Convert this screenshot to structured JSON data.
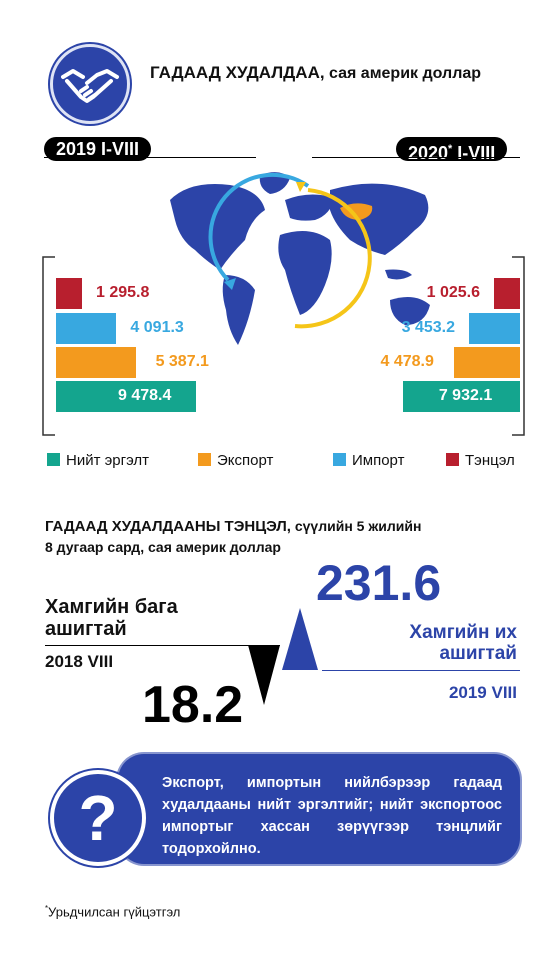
{
  "header": {
    "title_bold": "ГАДААД ХУДАЛДАА,",
    "title_rest": " сая америк доллар"
  },
  "periods": {
    "left": "2019 I-VIII",
    "right_main": "2020",
    "right_star": "*",
    "right_suffix": " I-VIII"
  },
  "colors": {
    "total": "#14a58e",
    "export": "#f39a1e",
    "import": "#38a8e0",
    "balance": "#b81f2e",
    "brand_blue": "#2c44a8",
    "yellow": "#f5c518"
  },
  "chart_data": {
    "type": "bar",
    "categories": [
      "Тэнцэл",
      "Импорт",
      "Экспорт",
      "Нийт эргэлт"
    ],
    "series": [
      {
        "name": "2019 I-VIII",
        "values": [
          1295.8,
          4091.3,
          5387.1,
          9478.4
        ],
        "labels": [
          "1 295.8",
          "4 091.3",
          "5 387.1",
          "9 478.4"
        ]
      },
      {
        "name": "2020* I-VIII",
        "values": [
          1025.6,
          3453.2,
          4478.9,
          7932.1
        ],
        "labels": [
          "1 025.6",
          "3 453.2",
          "4 478.9",
          "7 932.1"
        ]
      }
    ]
  },
  "legend": [
    {
      "label": "Нийт эргэлт",
      "color": "#14a58e"
    },
    {
      "label": "Экспорт",
      "color": "#f39a1e"
    },
    {
      "label": "Импорт",
      "color": "#38a8e0"
    },
    {
      "label": "Тэнцэл",
      "color": "#b81f2e"
    }
  ],
  "balance_section": {
    "title_bold": "ГАДААД ХУДАЛДААНЫ ТЭНЦЭЛ,",
    "title_rest": " сүүлийн 5 жилийн",
    "title_line2": "8 дугаар сард, сая америк доллар",
    "max_value": "231.6",
    "min_value": "18.2",
    "min_label_line1": "Хамгийн бага",
    "min_label_line2": "ашигтай",
    "min_period": "2018 VIII",
    "max_label_line1": "Хамгийн их",
    "max_label_line2": "ашигтай",
    "max_period": "2019 VIII"
  },
  "info": {
    "icon": "question-mark-icon",
    "text": "Экспорт, импортын нийлбэрээр гадаад худалдааны нийт эргэлтийг; нийт экспортоос импортыг хассан зөрүүгээр тэнцлийг тодорхойлно.",
    "q_glyph": "?"
  },
  "footnote": {
    "star": "*",
    "text": "Урьдчилсан гүйцэтгэл"
  }
}
